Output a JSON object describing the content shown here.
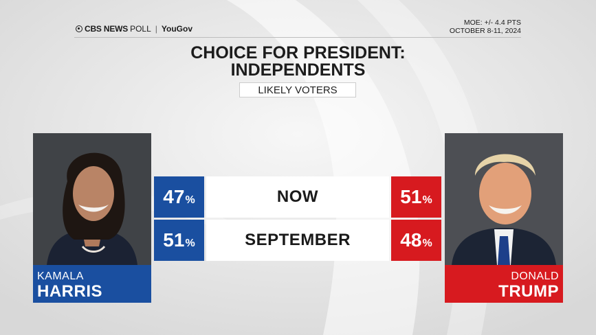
{
  "header": {
    "brand_cbs": "CBS NEWS",
    "brand_poll": "POLL",
    "brand_partner": "YouGov",
    "moe": "MOE: +/- 4.4 PTS",
    "dates": "OCTOBER 8-11, 2024"
  },
  "title_line1": "CHOICE FOR PRESIDENT:",
  "title_line2": "INDEPENDENTS",
  "subtitle": "LIKELY VOTERS",
  "colors": {
    "democrat": "#1a4fa0",
    "republican": "#d71a1f"
  },
  "candidates": {
    "left": {
      "first": "KAMALA",
      "last": "HARRIS"
    },
    "right": {
      "first": "DONALD",
      "last": "TRUMP"
    }
  },
  "chart_data": {
    "type": "table",
    "title": "CHOICE FOR PRESIDENT: INDEPENDENTS",
    "subtitle": "LIKELY VOTERS",
    "columns": [
      "KAMALA HARRIS",
      "DONALD TRUMP"
    ],
    "rows": [
      {
        "label": "NOW",
        "harris": "47",
        "trump": "51"
      },
      {
        "label": "SEPTEMBER",
        "harris": "51",
        "trump": "48"
      }
    ],
    "percent_symbol": "%"
  }
}
